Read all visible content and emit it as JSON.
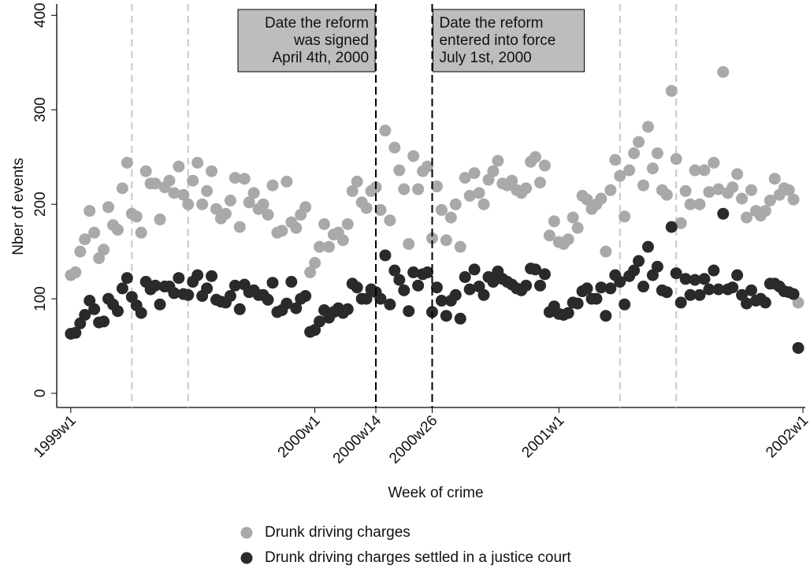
{
  "chart_data": {
    "type": "scatter",
    "x_label": "Week of crime",
    "y_label": "Nber of events",
    "xlim": [
      -3,
      156.5
    ],
    "ylim": [
      -15,
      412
    ],
    "xticks": [
      {
        "value": 0,
        "label": "1999w1"
      },
      {
        "value": 52,
        "label": "2000w1"
      },
      {
        "value": 65,
        "label": "2000w14"
      },
      {
        "value": 77,
        "label": "2000w26"
      },
      {
        "value": 104,
        "label": "2001w1"
      },
      {
        "value": 156,
        "label": "2002w1"
      }
    ],
    "yticks": [
      0,
      100,
      200,
      300,
      400
    ],
    "reference_lines": [
      13,
      25,
      117,
      129
    ],
    "event_lines": [
      {
        "value": 65,
        "label": [
          "Date the reform",
          "was signed",
          "April 4th, 2000"
        ]
      },
      {
        "value": 77,
        "label": [
          "Date the reform",
          "entered into force",
          "July 1st, 2000"
        ]
      }
    ],
    "x": [
      0,
      1,
      2,
      3,
      4,
      5,
      6,
      7,
      8,
      9,
      10,
      11,
      12,
      13,
      14,
      15,
      16,
      17,
      18,
      19,
      20,
      21,
      22,
      23,
      24,
      25,
      26,
      27,
      28,
      29,
      30,
      31,
      32,
      33,
      34,
      35,
      36,
      37,
      38,
      39,
      40,
      41,
      42,
      43,
      44,
      45,
      46,
      47,
      48,
      49,
      50,
      51,
      52,
      53,
      54,
      55,
      56,
      57,
      58,
      59,
      60,
      61,
      62,
      63,
      64,
      65,
      66,
      67,
      68,
      69,
      70,
      71,
      72,
      73,
      74,
      75,
      76,
      77,
      78,
      79,
      80,
      81,
      82,
      83,
      84,
      85,
      86,
      87,
      88,
      89,
      90,
      91,
      92,
      93,
      94,
      95,
      96,
      97,
      98,
      99,
      100,
      101,
      102,
      103,
      104,
      105,
      106,
      107,
      108,
      109,
      110,
      111,
      112,
      113,
      114,
      115,
      116,
      117,
      118,
      119,
      120,
      121,
      122,
      123,
      124,
      125,
      126,
      127,
      128,
      129,
      130,
      131,
      132,
      133,
      134,
      135,
      136,
      137,
      138,
      139,
      140,
      141,
      142,
      143,
      144,
      145,
      146,
      147,
      148,
      149,
      150,
      151,
      152,
      153,
      154,
      155
    ],
    "series": [
      {
        "name": "Drunk driving charges",
        "color": "#a9a9a9",
        "values": [
          125,
          128,
          150,
          163,
          193,
          170,
          143,
          152,
          197,
          178,
          173,
          217,
          244,
          190,
          187,
          170,
          235,
          222,
          222,
          184,
          218,
          225,
          212,
          240,
          210,
          200,
          225,
          244,
          200,
          214,
          235,
          195,
          185,
          190,
          204,
          228,
          176,
          227,
          202,
          212,
          195,
          200,
          189,
          220,
          170,
          172,
          224,
          181,
          175,
          189,
          197,
          128,
          138,
          155,
          179,
          155,
          168,
          170,
          162,
          179,
          214,
          224,
          202,
          196,
          214,
          218,
          194,
          278,
          183,
          260,
          236,
          216,
          158,
          251,
          216,
          235,
          240,
          164,
          219,
          194,
          162,
          186,
          200,
          155,
          228,
          209,
          233,
          212,
          200,
          226,
          235,
          246,
          222,
          220,
          225,
          215,
          212,
          217,
          245,
          250,
          223,
          241,
          167,
          182,
          160,
          158,
          163,
          186,
          175,
          209,
          205,
          195,
          200,
          206,
          150,
          215,
          247,
          230,
          187,
          236,
          254,
          266,
          220,
          282,
          238,
          254,
          215,
          210,
          320,
          248,
          180,
          214,
          200,
          236,
          200,
          236,
          213,
          244,
          216,
          340,
          212,
          218,
          232,
          206,
          186,
          215,
          193,
          188,
          193,
          204,
          227,
          210,
          217,
          215,
          205,
          96
        ]
      },
      {
        "name": "Drunk driving charges settled in a justice court",
        "color": "#2a2a2a",
        "values": [
          63,
          64,
          74,
          83,
          98,
          89,
          75,
          76,
          100,
          94,
          87,
          111,
          122,
          102,
          93,
          85,
          118,
          110,
          114,
          94,
          113,
          113,
          106,
          122,
          105,
          104,
          118,
          125,
          103,
          111,
          124,
          99,
          97,
          96,
          103,
          114,
          89,
          115,
          107,
          109,
          104,
          104,
          99,
          117,
          86,
          88,
          95,
          118,
          90,
          100,
          103,
          65,
          67,
          76,
          88,
          80,
          86,
          90,
          85,
          89,
          116,
          112,
          100,
          100,
          110,
          107,
          100,
          146,
          94,
          130,
          120,
          109,
          87,
          128,
          114,
          126,
          128,
          86,
          112,
          98,
          82,
          98,
          104,
          79,
          123,
          110,
          131,
          113,
          104,
          123,
          118,
          129,
          121,
          118,
          115,
          111,
          109,
          114,
          132,
          131,
          114,
          126,
          86,
          92,
          84,
          83,
          85,
          96,
          95,
          108,
          111,
          100,
          100,
          112,
          82,
          111,
          125,
          118,
          94,
          124,
          130,
          140,
          113,
          155,
          125,
          134,
          109,
          107,
          176,
          127,
          96,
          121,
          104,
          120,
          104,
          121,
          110,
          130,
          110,
          190,
          110,
          112,
          125,
          104,
          95,
          109,
          98,
          100,
          96,
          116,
          116,
          113,
          108,
          107,
          105,
          48
        ]
      }
    ]
  }
}
